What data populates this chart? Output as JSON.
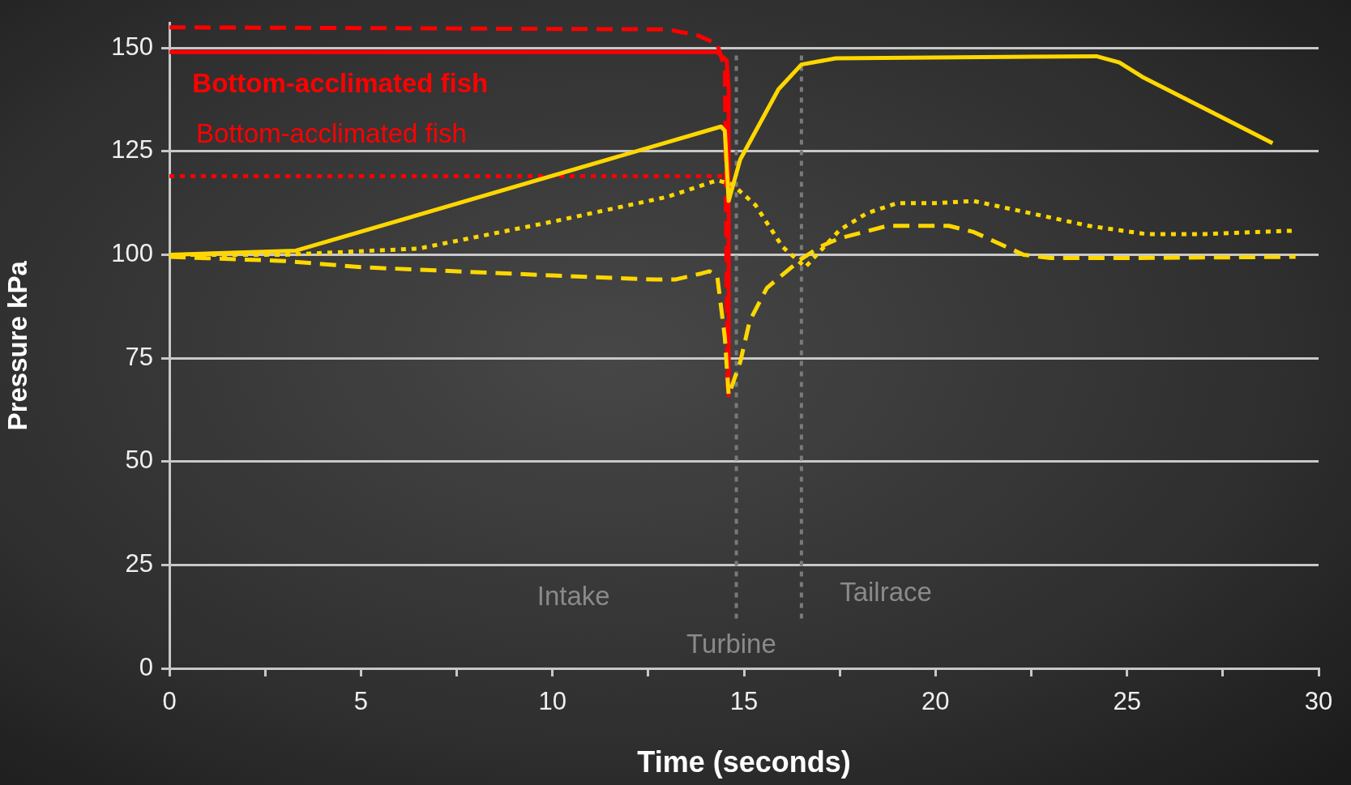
{
  "chart_data": {
    "type": "line",
    "xlabel": "Time (seconds)",
    "ylabel": "Pressure kPa",
    "xlim": [
      0,
      30
    ],
    "xticks": [
      0,
      {
        "value": 2.5,
        "label": null
      },
      5,
      {
        "value": 7.5,
        "label": null
      },
      10,
      {
        "value": 12.5,
        "label": null
      },
      15,
      {
        "value": 17.5,
        "label": null
      },
      20,
      {
        "value": 22.5,
        "label": null
      },
      25,
      {
        "value": 27.5,
        "label": null
      },
      30
    ],
    "ylim": [
      0,
      156
    ],
    "yticks": [
      0,
      25,
      50,
      75,
      100,
      125,
      150
    ],
    "grid": "y",
    "marker": "none",
    "series": [
      {
        "color": "#ffd700",
        "line_style": "solid",
        "x": [
          0,
          3.3,
          14.4,
          14.5,
          14.6,
          14.9,
          15.9,
          16.5,
          17.4,
          24.2,
          24.8,
          25.4,
          28.8
        ],
        "values": [
          100,
          101,
          131,
          130,
          113,
          123,
          140,
          146,
          147.5,
          148,
          146.5,
          143,
          127
        ]
      },
      {
        "color": "#ffd700",
        "line_style": "dotted",
        "x": [
          0,
          3,
          6.5,
          10,
          13,
          14.3,
          14.7,
          15.3,
          16,
          16.6,
          17,
          17.5,
          18.2,
          19,
          20,
          21,
          22,
          24,
          25.5,
          27,
          29.3
        ],
        "values": [
          100,
          100,
          101.5,
          108,
          114,
          118,
          117,
          112,
          102,
          97,
          101,
          106,
          110,
          112.5,
          112.5,
          113,
          111,
          107,
          105,
          105,
          105.8
        ]
      },
      {
        "color": "#ffd700",
        "line_style": "dashed",
        "x": [
          0,
          3,
          5,
          10,
          12.7,
          13.2,
          13.9,
          14.1,
          14.3,
          14.5,
          14.6,
          14.9,
          15.15,
          15.6,
          16.5,
          17,
          17.5,
          18.75,
          20.35,
          21,
          22.3,
          23,
          25,
          29.4
        ],
        "values": [
          99.5,
          98.5,
          97,
          95,
          94,
          94,
          95.5,
          96,
          95,
          80,
          66,
          74,
          84,
          92,
          99,
          102,
          104,
          107,
          107,
          105.5,
          100,
          99.2,
          99.2,
          99.5
        ]
      },
      {
        "color": "#ff0000",
        "line_style": "solid",
        "x": [
          0,
          14.3,
          14.55,
          14.6,
          14.6
        ],
        "values": [
          149,
          149,
          147,
          140,
          66
        ]
      },
      {
        "color": "#ff0000",
        "line_style": "dashed",
        "x": [
          0,
          13,
          13.8,
          14.3,
          14.5,
          14.57
        ],
        "values": [
          155,
          154.5,
          153,
          151,
          145,
          67
        ]
      },
      {
        "color": "#ff0000",
        "line_style": "dotted",
        "x": [
          0,
          14.5
        ],
        "values": [
          119,
          119
        ]
      }
    ],
    "ref_lines": [
      {
        "axis": "x",
        "value": 14.8,
        "color": "#7a7a7a",
        "line_style": "dotted"
      },
      {
        "axis": "x",
        "value": 16.5,
        "color": "#7a7a7a",
        "line_style": "dotted"
      }
    ],
    "annotations": [
      "Bottom-acclimated fish",
      "Bottom-acclimated fish",
      "Intake",
      "Turbine",
      "Tailrace"
    ]
  }
}
